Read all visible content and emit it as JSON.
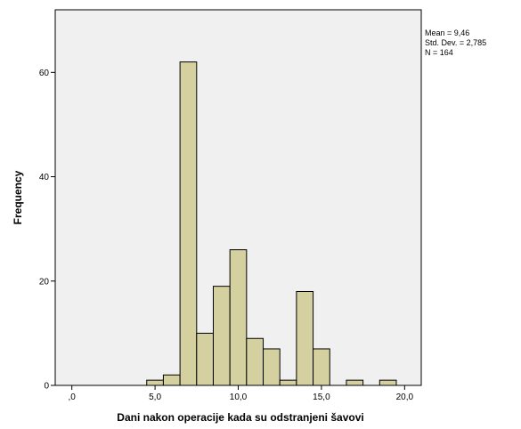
{
  "chart_data": {
    "type": "bar",
    "subtype": "histogram",
    "xlabel": "Dani nakon operacije kada su odstranjeni šavovi",
    "ylabel": "Frequency",
    "xlim": [
      -1,
      21
    ],
    "ylim": [
      0,
      72
    ],
    "xticks": [
      {
        "value": 0,
        "label": ",0"
      },
      {
        "value": 5,
        "label": "5,0"
      },
      {
        "value": 10,
        "label": "10,0"
      },
      {
        "value": 15,
        "label": "15,0"
      },
      {
        "value": 20,
        "label": "20,0"
      }
    ],
    "yticks": [
      0,
      20,
      40,
      60
    ],
    "bin_width": 1,
    "bins": [
      {
        "start": 4.5,
        "end": 5.5,
        "count": 1
      },
      {
        "start": 5.5,
        "end": 6.5,
        "count": 2
      },
      {
        "start": 6.5,
        "end": 7.5,
        "count": 62
      },
      {
        "start": 7.5,
        "end": 8.5,
        "count": 10
      },
      {
        "start": 8.5,
        "end": 9.5,
        "count": 19
      },
      {
        "start": 9.5,
        "end": 10.5,
        "count": 26
      },
      {
        "start": 10.5,
        "end": 11.5,
        "count": 9
      },
      {
        "start": 11.5,
        "end": 12.5,
        "count": 7
      },
      {
        "start": 12.5,
        "end": 13.5,
        "count": 1
      },
      {
        "start": 13.5,
        "end": 14.5,
        "count": 18
      },
      {
        "start": 14.5,
        "end": 15.5,
        "count": 7
      },
      {
        "start": 16.5,
        "end": 17.5,
        "count": 1
      },
      {
        "start": 18.5,
        "end": 19.5,
        "count": 1
      }
    ],
    "stats": {
      "mean_label": "Mean = 9,46",
      "std_label": "Std. Dev. = 2,785",
      "n_label": "N = 164"
    },
    "colors": {
      "plot_background": "#f0f0f0",
      "bar_fill": "#d4d0a0",
      "bar_stroke": "#000000"
    },
    "grid": false,
    "legend": "none"
  }
}
